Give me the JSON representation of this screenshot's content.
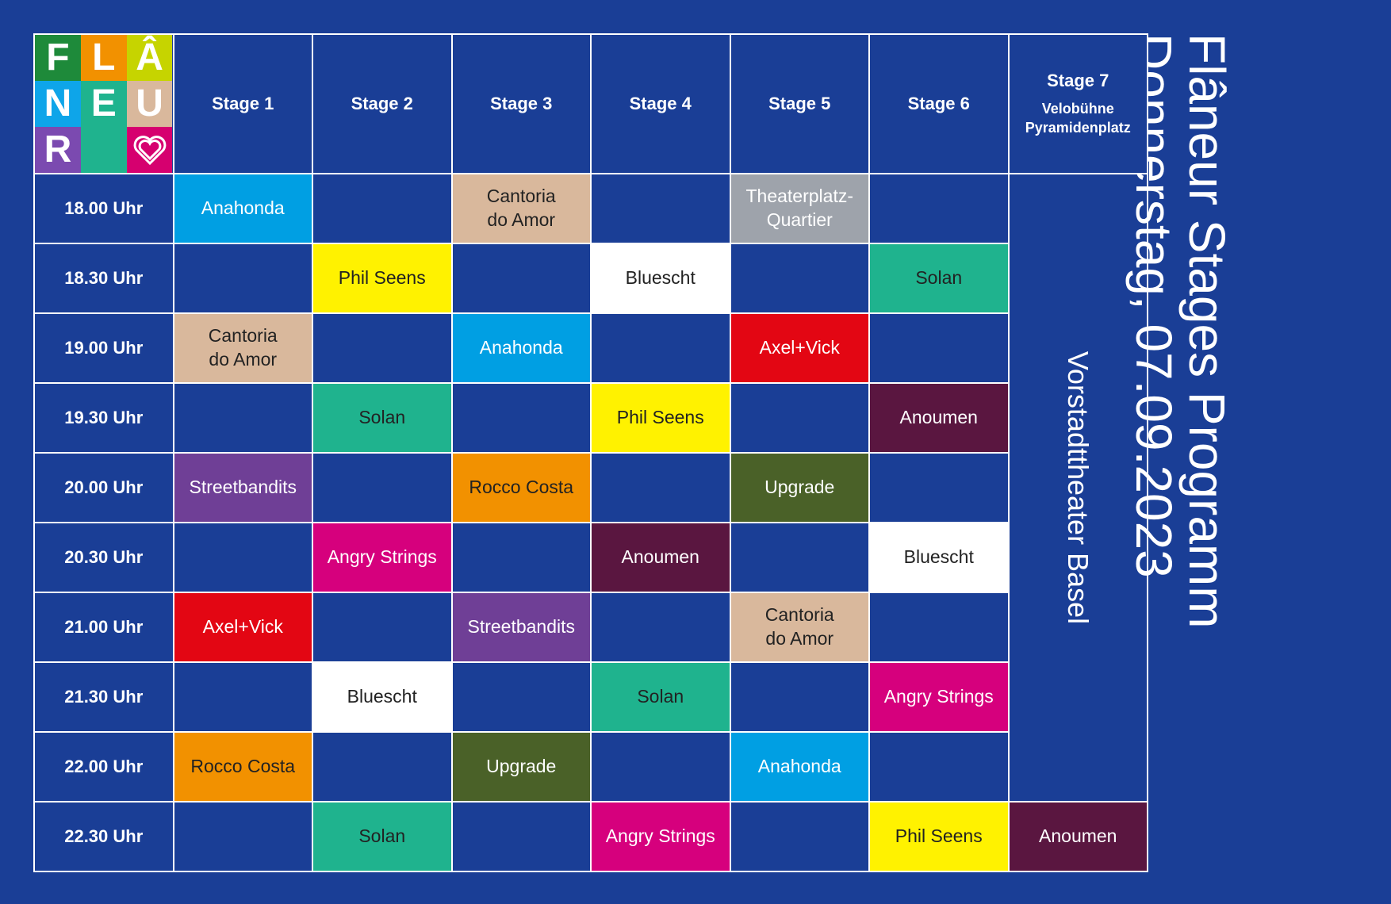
{
  "title": {
    "line1": "Flâneur Stages Programm",
    "line2": "Donnerstag, 07.09.2023"
  },
  "logo": {
    "letters": [
      "F",
      "L",
      "Â",
      "N",
      "E",
      "U",
      "R",
      "",
      ""
    ],
    "colors": [
      "#1e8a3a",
      "#f29100",
      "#c6d400",
      "#0ea5e9",
      "#1fb38e",
      "#d9b89c",
      "#7b4ab0",
      "#1fb38e",
      "#d6006f"
    ],
    "icon": "heart-icon"
  },
  "headers": [
    {
      "label": "Stage 1"
    },
    {
      "label": "Stage 2"
    },
    {
      "label": "Stage 3"
    },
    {
      "label": "Stage 4"
    },
    {
      "label": "Stage 5"
    },
    {
      "label": "Stage 6"
    },
    {
      "label": "Stage 7",
      "sub1": "Velobühne",
      "sub2": "Pyramidenplatz"
    }
  ],
  "vertical_label": "Vorstadttheater Basel",
  "rows": [
    {
      "time": "18.00 Uhr",
      "cells": [
        {
          "text": "Anahonda",
          "bg": "#009fe3",
          "fg": "#ffffff"
        },
        null,
        {
          "text": "Cantoria\ndo Amor",
          "bg": "#d9b89c",
          "fg": "#222222"
        },
        null,
        {
          "text": "Theaterplatz-\nQuartier",
          "bg": "#9ea3ab",
          "fg": "#ffffff"
        },
        null
      ]
    },
    {
      "time": "18.30 Uhr",
      "cells": [
        null,
        {
          "text": "Phil Seens",
          "bg": "#fff200",
          "fg": "#222222"
        },
        null,
        {
          "text": "Bluescht",
          "bg": "#ffffff",
          "fg": "#222222"
        },
        null,
        {
          "text": "Solan",
          "bg": "#1fb38e",
          "fg": "#222222"
        }
      ]
    },
    {
      "time": "19.00 Uhr",
      "cells": [
        {
          "text": "Cantoria\ndo Amor",
          "bg": "#d9b89c",
          "fg": "#222222"
        },
        null,
        {
          "text": "Anahonda",
          "bg": "#009fe3",
          "fg": "#ffffff"
        },
        null,
        {
          "text": "Axel+Vick",
          "bg": "#e30613",
          "fg": "#ffffff"
        },
        null
      ]
    },
    {
      "time": "19.30 Uhr",
      "cells": [
        null,
        {
          "text": "Solan",
          "bg": "#1fb38e",
          "fg": "#222222"
        },
        null,
        {
          "text": "Phil Seens",
          "bg": "#fff200",
          "fg": "#222222"
        },
        null,
        {
          "text": "Anoumen",
          "bg": "#5a1640",
          "fg": "#ffffff"
        }
      ]
    },
    {
      "time": "20.00 Uhr",
      "cells": [
        {
          "text": "Streetbandits",
          "bg": "#6f3f96",
          "fg": "#ffffff"
        },
        null,
        {
          "text": "Rocco Costa",
          "bg": "#f29100",
          "fg": "#222222"
        },
        null,
        {
          "text": "Upgrade",
          "bg": "#4a6128",
          "fg": "#ffffff"
        },
        null
      ]
    },
    {
      "time": "20.30 Uhr",
      "cells": [
        null,
        {
          "text": "Angry Strings",
          "bg": "#d6007d",
          "fg": "#ffffff"
        },
        null,
        {
          "text": "Anoumen",
          "bg": "#5a1640",
          "fg": "#ffffff"
        },
        null,
        {
          "text": "Bluescht",
          "bg": "#ffffff",
          "fg": "#222222"
        }
      ]
    },
    {
      "time": "21.00 Uhr",
      "cells": [
        {
          "text": "Axel+Vick",
          "bg": "#e30613",
          "fg": "#ffffff"
        },
        null,
        {
          "text": "Streetbandits",
          "bg": "#6f3f96",
          "fg": "#ffffff"
        },
        null,
        {
          "text": "Cantoria\ndo Amor",
          "bg": "#d9b89c",
          "fg": "#222222"
        },
        null
      ]
    },
    {
      "time": "21.30 Uhr",
      "cells": [
        null,
        {
          "text": "Bluescht",
          "bg": "#ffffff",
          "fg": "#222222"
        },
        null,
        {
          "text": "Solan",
          "bg": "#1fb38e",
          "fg": "#222222"
        },
        null,
        {
          "text": "Angry Strings",
          "bg": "#d6007d",
          "fg": "#ffffff"
        }
      ]
    },
    {
      "time": "22.00 Uhr",
      "cells": [
        {
          "text": "Rocco Costa",
          "bg": "#f29100",
          "fg": "#222222"
        },
        null,
        {
          "text": "Upgrade",
          "bg": "#4a6128",
          "fg": "#ffffff"
        },
        null,
        {
          "text": "Anahonda",
          "bg": "#009fe3",
          "fg": "#ffffff"
        },
        null
      ]
    },
    {
      "time": "22.30 Uhr",
      "cells": [
        null,
        {
          "text": "Solan",
          "bg": "#1fb38e",
          "fg": "#222222"
        },
        null,
        {
          "text": "Angry Strings",
          "bg": "#d6007d",
          "fg": "#ffffff"
        },
        null,
        {
          "text": "Phil Seens",
          "bg": "#fff200",
          "fg": "#222222"
        },
        {
          "text": "Anoumen",
          "bg": "#5a1640",
          "fg": "#ffffff"
        }
      ]
    }
  ]
}
